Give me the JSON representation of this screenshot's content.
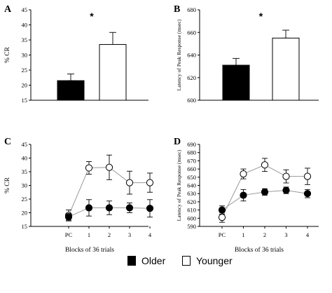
{
  "colors": {
    "older": "#000000",
    "younger": "#ffffff",
    "axis": "#000000",
    "line": "#999999"
  },
  "legend": {
    "older": "Older",
    "younger": "Younger"
  },
  "chart_data": [
    {
      "panel": "A",
      "type": "bar",
      "categories": [
        "Older",
        "Younger"
      ],
      "values": [
        21.5,
        33.5
      ],
      "errors": [
        2.2,
        4.0
      ],
      "ylabel": "% CR",
      "ylim": [
        15,
        45
      ],
      "yticks": [
        15,
        20,
        25,
        30,
        35,
        40,
        45
      ],
      "annotation": "*"
    },
    {
      "panel": "B",
      "type": "bar",
      "categories": [
        "Older",
        "Younger"
      ],
      "values": [
        631,
        655
      ],
      "errors": [
        6,
        7
      ],
      "ylabel": "Latency of Peak Response (msec)",
      "ylim": [
        600,
        680
      ],
      "yticks": [
        600,
        620,
        640,
        660,
        680
      ],
      "annotation": "*"
    },
    {
      "panel": "C",
      "type": "line",
      "x": [
        "PC",
        "1",
        "2",
        "3",
        "4"
      ],
      "series": [
        {
          "name": "Older",
          "values": [
            18.5,
            21.8,
            21.8,
            21.8,
            21.6
          ],
          "errors": [
            1.2,
            3.0,
            2.5,
            1.8,
            3.2
          ]
        },
        {
          "name": "Younger",
          "values": [
            19.0,
            36.4,
            36.6,
            31.0,
            31.0
          ],
          "errors": [
            2.0,
            2.3,
            4.5,
            4.2,
            3.5
          ]
        }
      ],
      "xlabel": "Blocks of 36 trials",
      "ylabel": "% CR",
      "ylim": [
        15,
        45
      ],
      "yticks": [
        15,
        20,
        25,
        30,
        35,
        40,
        45
      ]
    },
    {
      "panel": "D",
      "type": "line",
      "x": [
        "PC",
        "1",
        "2",
        "3",
        "4"
      ],
      "series": [
        {
          "name": "Older",
          "values": [
            610,
            628,
            632,
            634,
            630
          ],
          "errors": [
            5,
            7,
            4,
            4,
            5
          ]
        },
        {
          "name": "Younger",
          "values": [
            601,
            654,
            665,
            651,
            651
          ],
          "errors": [
            6,
            6,
            8,
            8,
            10
          ]
        }
      ],
      "xlabel": "Blocks of 36 trials",
      "ylabel": "Latency of Peak Response (msec)",
      "ylim": [
        590,
        690
      ],
      "yticks": [
        590,
        600,
        610,
        620,
        630,
        640,
        650,
        660,
        670,
        680,
        690
      ]
    }
  ]
}
